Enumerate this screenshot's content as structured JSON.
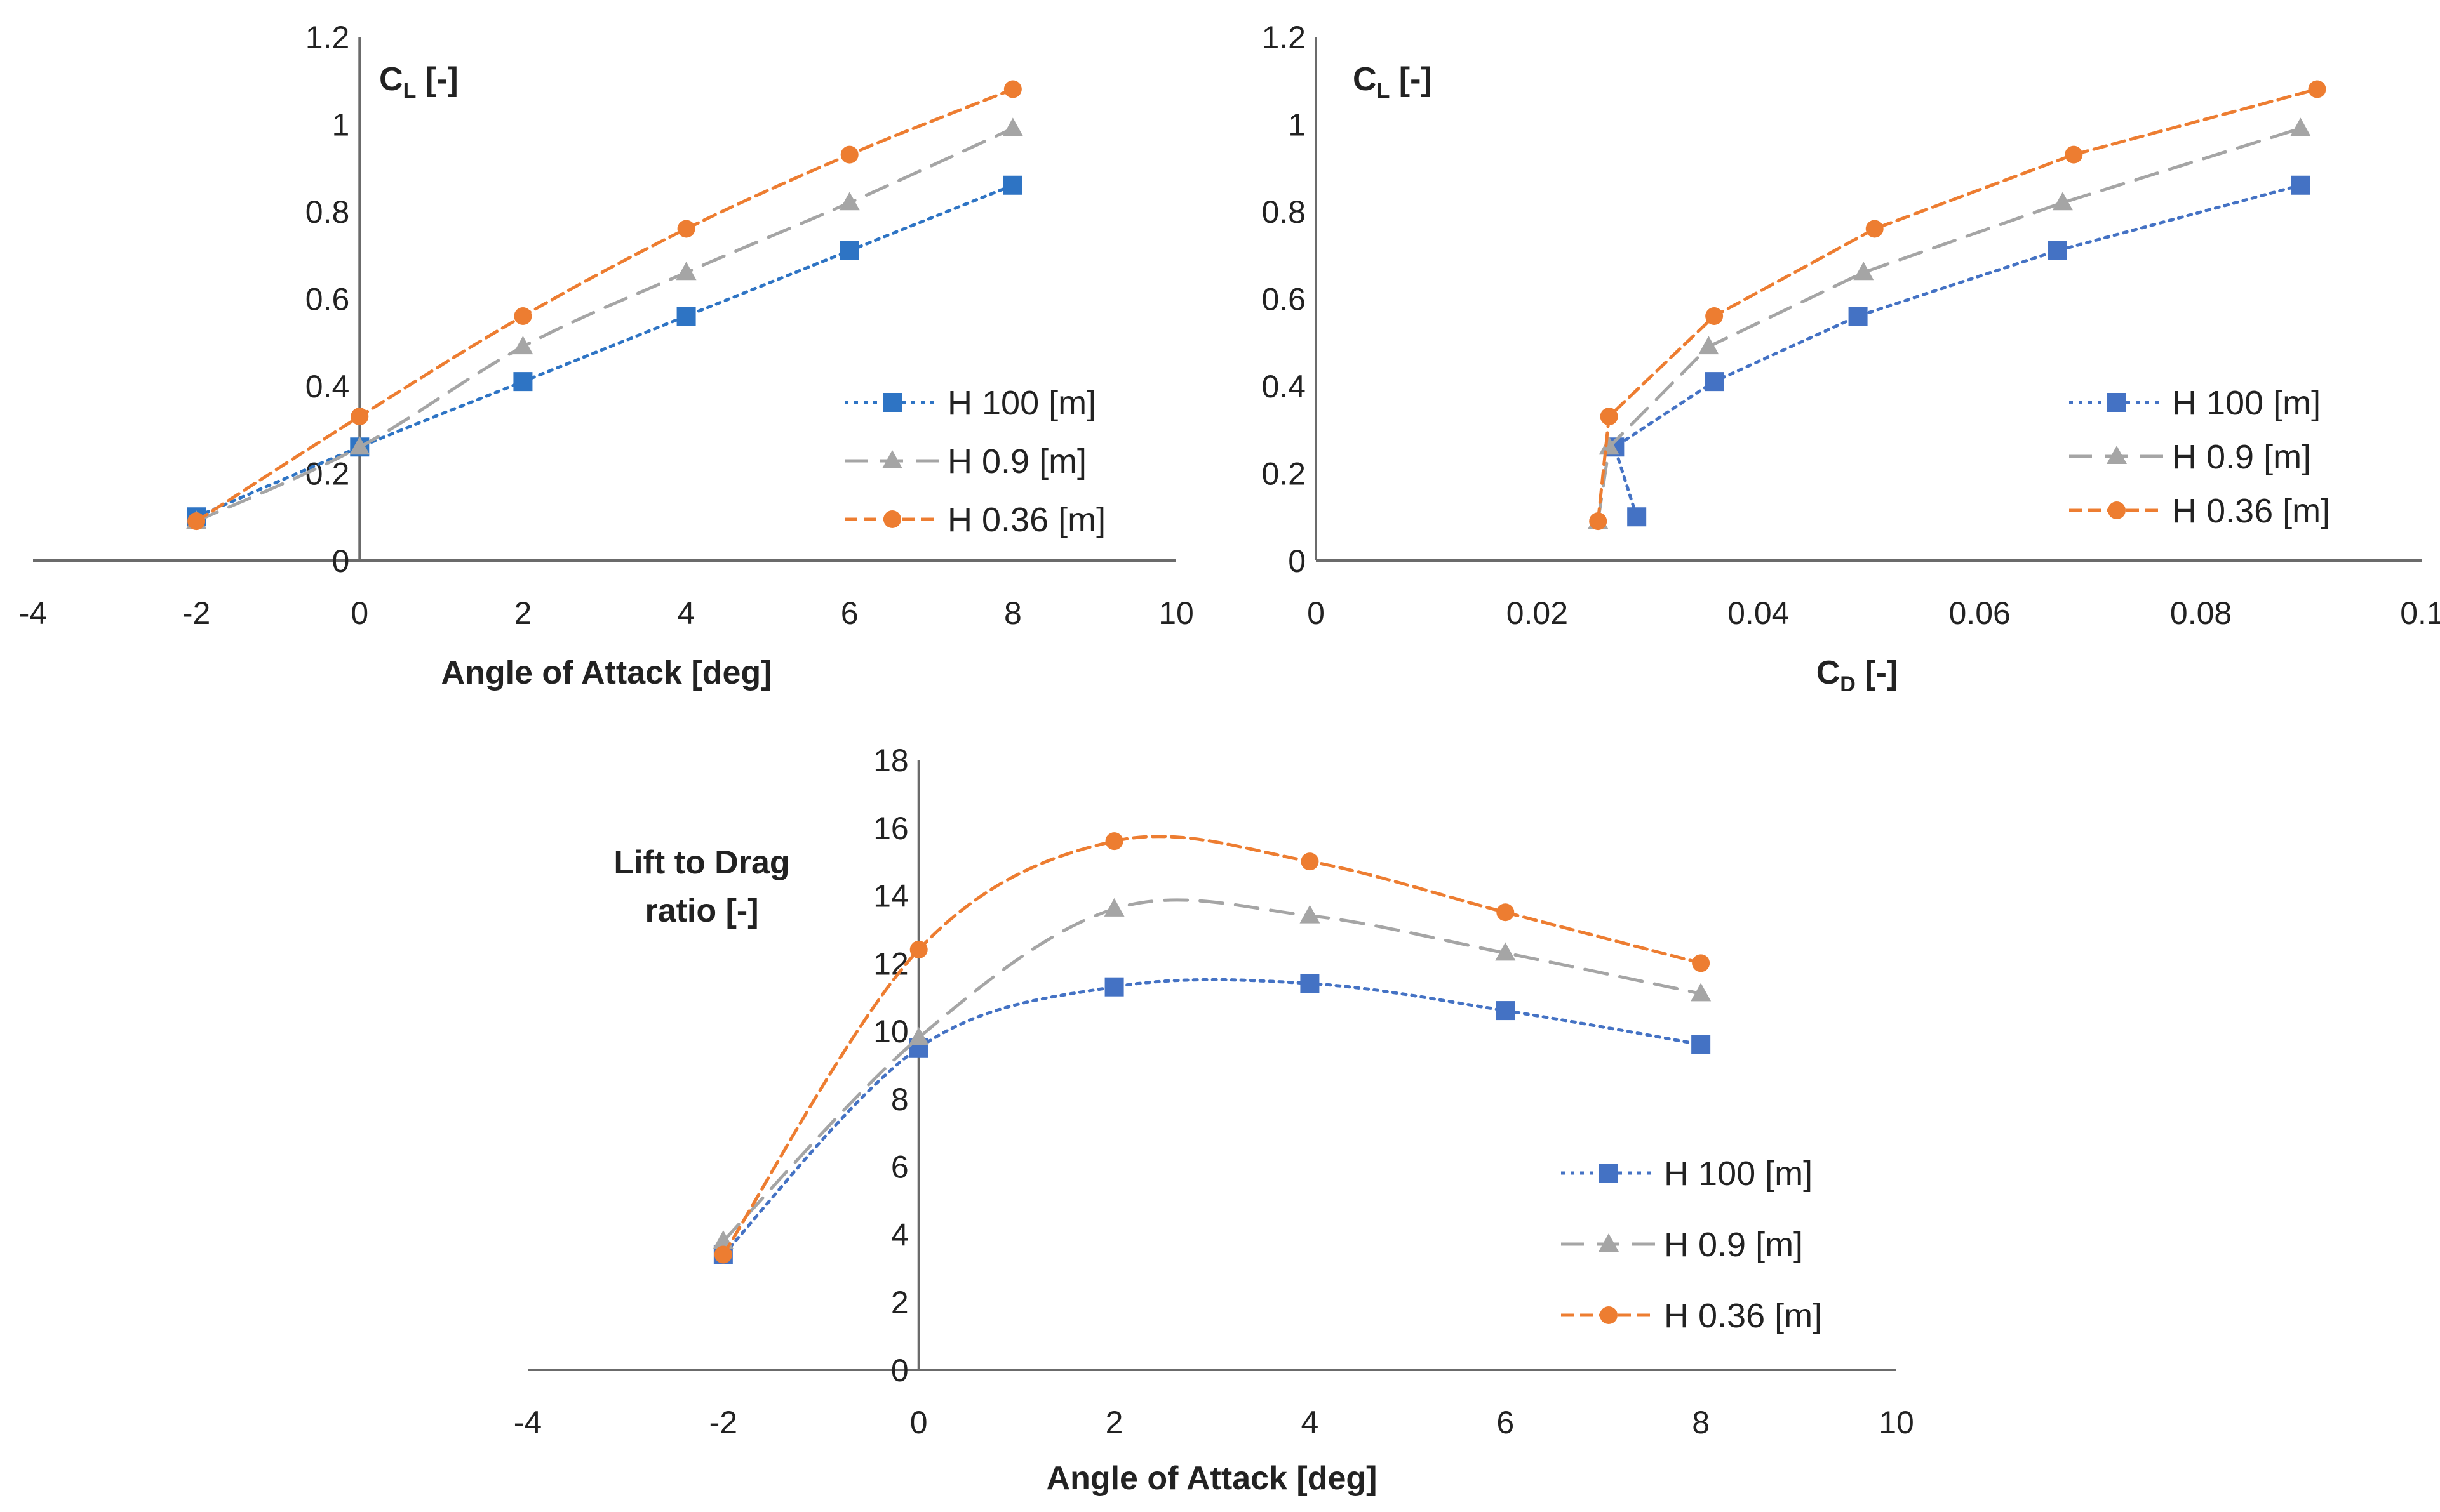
{
  "chart_data": [
    {
      "type": "line",
      "panel": "top-left",
      "x_title": "Angle of Attack [deg]",
      "y_title": {
        "main": "C",
        "sub": "L",
        "unit": " [-]"
      },
      "xlim": [
        -4,
        10
      ],
      "ylim": [
        0,
        1.2
      ],
      "x_ticks": [
        "-4",
        "-2",
        "0",
        "2",
        "4",
        "6",
        "8",
        "10"
      ],
      "y_ticks": [
        "0",
        "0.2",
        "0.4",
        "0.6",
        "0.8",
        "1",
        "1.2"
      ],
      "x_tick_values": [
        -4,
        -2,
        0,
        2,
        4,
        6,
        8,
        10
      ],
      "y_tick_values": [
        0,
        0.2,
        0.4,
        0.6,
        0.8,
        1,
        1.2
      ],
      "legend_position": "lower-right",
      "series": [
        {
          "name": "H 100 [m]",
          "color": "#2e74c4",
          "marker": "square",
          "dash": "dotted",
          "x": [
            -2,
            0,
            2,
            4,
            6,
            8
          ],
          "y": [
            0.1,
            0.26,
            0.41,
            0.56,
            0.71,
            0.86
          ]
        },
        {
          "name": "H 0.9 [m]",
          "color": "#a5a5a5",
          "marker": "triangle",
          "dash": "dashed",
          "x": [
            -2,
            0,
            2,
            4,
            6,
            8
          ],
          "y": [
            0.09,
            0.26,
            0.49,
            0.66,
            0.82,
            0.99
          ]
        },
        {
          "name": "H 0.36 [m]",
          "color": "#ed7d31",
          "marker": "circle",
          "dash": "short-dashed",
          "x": [
            -2,
            0,
            2,
            4,
            6,
            8
          ],
          "y": [
            0.09,
            0.33,
            0.56,
            0.76,
            0.93,
            1.08
          ]
        }
      ]
    },
    {
      "type": "line",
      "panel": "top-right",
      "x_title": {
        "main": "C",
        "sub": "D",
        "unit": " [-]"
      },
      "y_title": {
        "main": "C",
        "sub": "L",
        "unit": " [-]"
      },
      "xlim": [
        0,
        0.1
      ],
      "ylim": [
        0,
        1.2
      ],
      "x_ticks": [
        "0",
        "0.02",
        "0.04",
        "0.06",
        "0.08",
        "0.1"
      ],
      "y_ticks": [
        "0",
        "0.2",
        "0.4",
        "0.6",
        "0.8",
        "1",
        "1.2"
      ],
      "x_tick_values": [
        0,
        0.02,
        0.04,
        0.06,
        0.08,
        0.1
      ],
      "y_tick_values": [
        0,
        0.2,
        0.4,
        0.6,
        0.8,
        1,
        1.2
      ],
      "legend_position": "lower-right",
      "series": [
        {
          "name": "H 100 [m]",
          "color": "#4472c4",
          "marker": "square",
          "dash": "dotted",
          "x": [
            0.029,
            0.027,
            0.036,
            0.049,
            0.067,
            0.089
          ],
          "y": [
            0.1,
            0.26,
            0.41,
            0.56,
            0.71,
            0.86
          ]
        },
        {
          "name": "H 0.9 [m]",
          "color": "#a5a5a5",
          "marker": "triangle",
          "dash": "dashed",
          "x": [
            0.0255,
            0.0265,
            0.0355,
            0.0495,
            0.0675,
            0.089
          ],
          "y": [
            0.09,
            0.26,
            0.49,
            0.66,
            0.82,
            0.99
          ]
        },
        {
          "name": "H 0.36 [m]",
          "color": "#ed7d31",
          "marker": "circle",
          "dash": "short-dashed",
          "x": [
            0.0255,
            0.0265,
            0.036,
            0.0505,
            0.0685,
            0.0905
          ],
          "y": [
            0.09,
            0.33,
            0.56,
            0.76,
            0.93,
            1.08
          ]
        }
      ]
    },
    {
      "type": "line",
      "panel": "bottom",
      "x_title": "Angle of Attack [deg]",
      "y_title_lines": [
        "Lift to Drag",
        "ratio [-]"
      ],
      "xlim": [
        -4,
        10
      ],
      "ylim": [
        0,
        18
      ],
      "x_ticks": [
        "-4",
        "-2",
        "0",
        "2",
        "4",
        "6",
        "8",
        "10"
      ],
      "y_ticks": [
        "0",
        "2",
        "4",
        "6",
        "8",
        "10",
        "12",
        "14",
        "16",
        "18"
      ],
      "x_tick_values": [
        -4,
        -2,
        0,
        2,
        4,
        6,
        8,
        10
      ],
      "y_tick_values": [
        0,
        2,
        4,
        6,
        8,
        10,
        12,
        14,
        16,
        18
      ],
      "legend_position": "lower-right",
      "series": [
        {
          "name": "H 100 [m]",
          "color": "#4472c4",
          "marker": "square",
          "dash": "dotted",
          "x": [
            -2,
            0,
            2,
            4,
            6,
            8
          ],
          "y": [
            3.4,
            9.5,
            11.3,
            11.4,
            10.6,
            9.6
          ]
        },
        {
          "name": "H 0.9 [m]",
          "color": "#a5a5a5",
          "marker": "triangle",
          "dash": "dashed",
          "x": [
            -2,
            0,
            2,
            4,
            6,
            8
          ],
          "y": [
            3.8,
            9.8,
            13.6,
            13.4,
            12.3,
            11.1
          ]
        },
        {
          "name": "H 0.36 [m]",
          "color": "#ed7d31",
          "marker": "circle",
          "dash": "short-dashed",
          "x": [
            -2,
            0,
            2,
            4,
            6,
            8
          ],
          "y": [
            3.4,
            12.4,
            15.6,
            15.0,
            13.5,
            12.0
          ]
        }
      ]
    }
  ]
}
